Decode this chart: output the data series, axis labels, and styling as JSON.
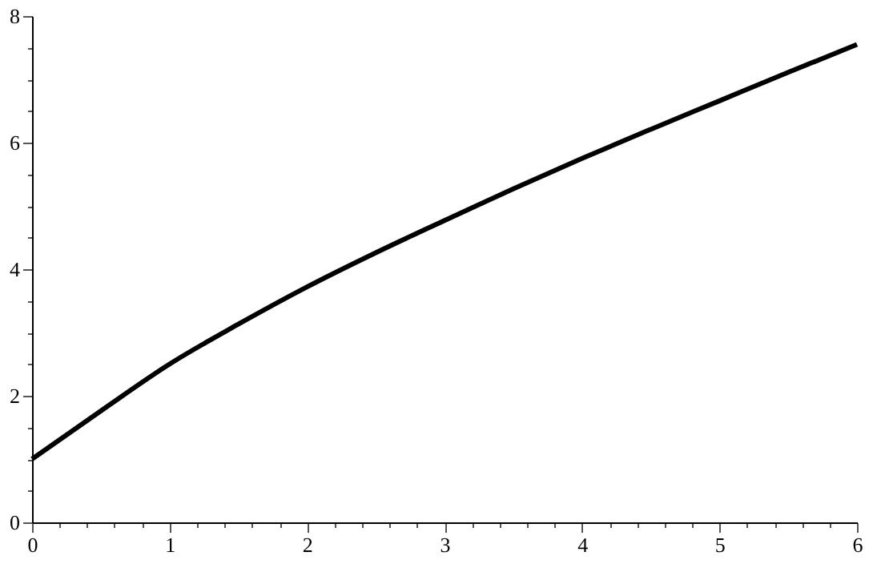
{
  "chart_data": {
    "type": "line",
    "x": [
      0,
      0.5,
      1,
      1.5,
      2,
      2.5,
      3,
      3.5,
      4,
      4.5,
      5,
      5.5,
      6
    ],
    "series": [
      {
        "color": "#000000",
        "values": [
          1.0,
          1.76,
          2.5,
          3.13,
          3.72,
          4.26,
          4.77,
          5.27,
          5.75,
          6.21,
          6.66,
          7.11,
          7.55
        ]
      }
    ],
    "xlim": [
      0,
      6
    ],
    "ylim": [
      0,
      8
    ],
    "xticks": [
      0,
      {
        "value": 0.2,
        "label": null
      },
      {
        "value": 0.4,
        "label": null
      },
      {
        "value": 0.6,
        "label": null
      },
      {
        "value": 0.8,
        "label": null
      },
      1,
      {
        "value": 1.2,
        "label": null
      },
      {
        "value": 1.4,
        "label": null
      },
      {
        "value": 1.6,
        "label": null
      },
      {
        "value": 1.8,
        "label": null
      },
      2,
      {
        "value": 2.2,
        "label": null
      },
      {
        "value": 2.4,
        "label": null
      },
      {
        "value": 2.6,
        "label": null
      },
      {
        "value": 2.8,
        "label": null
      },
      3,
      {
        "value": 3.2,
        "label": null
      },
      {
        "value": 3.4,
        "label": null
      },
      {
        "value": 3.6,
        "label": null
      },
      {
        "value": 3.8,
        "label": null
      },
      4,
      {
        "value": 4.2,
        "label": null
      },
      {
        "value": 4.4,
        "label": null
      },
      {
        "value": 4.6,
        "label": null
      },
      {
        "value": 4.8,
        "label": null
      },
      5,
      {
        "value": 5.2,
        "label": null
      },
      {
        "value": 5.4,
        "label": null
      },
      {
        "value": 5.6,
        "label": null
      },
      {
        "value": 5.8,
        "label": null
      },
      6
    ],
    "yticks": [
      0,
      {
        "value": 0.5,
        "label": null
      },
      {
        "value": 1,
        "label": null
      },
      {
        "value": 1.5,
        "label": null
      },
      2,
      {
        "value": 2.5,
        "label": null
      },
      {
        "value": 3,
        "label": null
      },
      {
        "value": 3.5,
        "label": null
      },
      4,
      {
        "value": 4.5,
        "label": null
      },
      {
        "value": 5,
        "label": null
      },
      {
        "value": 5.5,
        "label": null
      },
      6,
      {
        "value": 6.5,
        "label": null
      },
      {
        "value": 7,
        "label": null
      },
      {
        "value": 7.5,
        "label": null
      },
      8
    ],
    "grid": false,
    "marker": "none",
    "line_style": "solid"
  }
}
